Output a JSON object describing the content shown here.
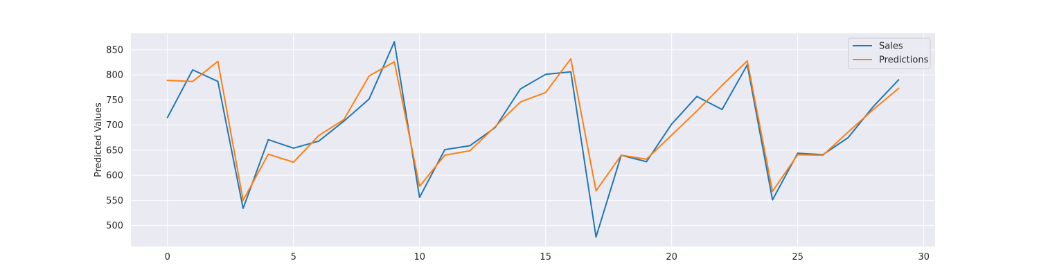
{
  "chart_data": {
    "type": "line",
    "title": "",
    "xlabel": "",
    "ylabel": "Predicted Values",
    "xlim": [
      -1.45,
      30.45
    ],
    "ylim": [
      458,
      883
    ],
    "x_ticks": [
      0,
      5,
      10,
      15,
      20,
      25,
      30
    ],
    "y_ticks": [
      500,
      550,
      600,
      650,
      700,
      750,
      800,
      850
    ],
    "grid": true,
    "legend_position": "top-right",
    "x": [
      0,
      1,
      2,
      3,
      4,
      5,
      6,
      7,
      8,
      9,
      10,
      11,
      12,
      13,
      14,
      15,
      16,
      17,
      18,
      19,
      20,
      21,
      22,
      23,
      24,
      25,
      26,
      27,
      28,
      29
    ],
    "series": [
      {
        "name": "Sales",
        "color": "#1f77b4",
        "values": [
          715,
          810,
          787,
          534,
          671,
          654,
          668,
          708,
          752,
          866,
          556,
          651,
          659,
          695,
          772,
          801,
          806,
          477,
          640,
          627,
          702,
          757,
          731,
          820,
          551,
          644,
          641,
          675,
          737,
          790
        ]
      },
      {
        "name": "Predictions",
        "color": "#ff7f0e",
        "values": [
          789,
          787,
          827,
          550,
          642,
          626,
          679,
          711,
          798,
          826,
          578,
          640,
          649,
          697,
          746,
          765,
          832,
          569,
          640,
          632,
          680,
          728,
          779,
          828,
          568,
          641,
          640,
          686,
          731,
          773
        ]
      }
    ]
  }
}
